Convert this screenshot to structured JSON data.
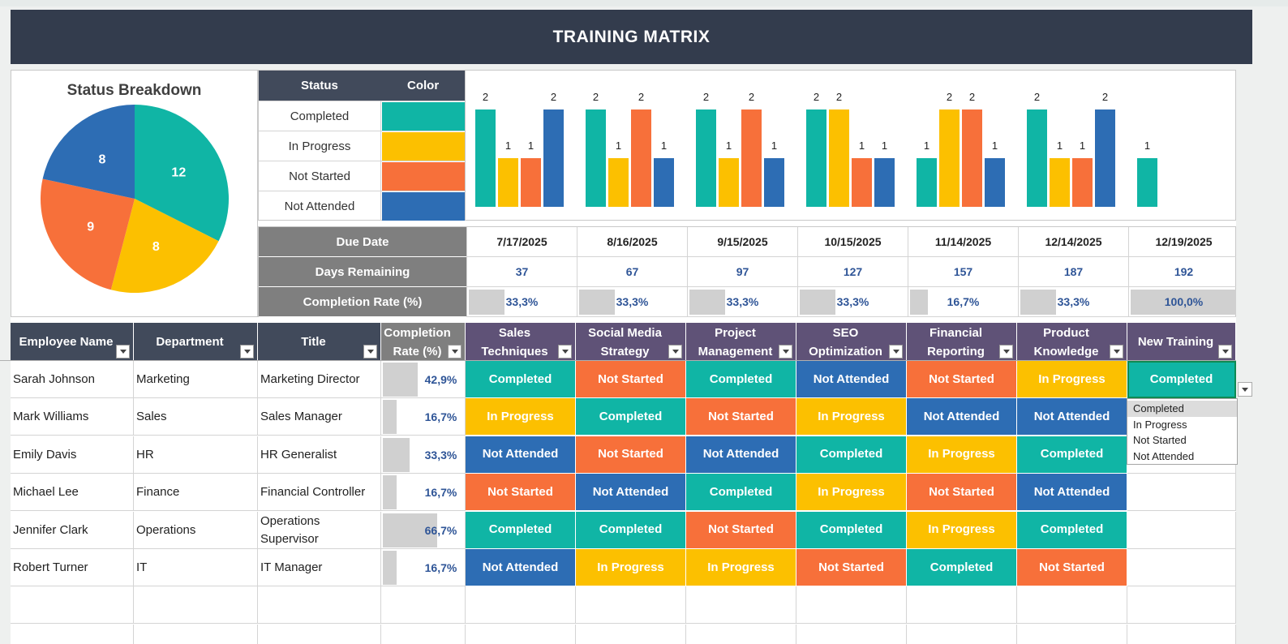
{
  "title": "TRAINING MATRIX",
  "pie": {
    "title": "Status Breakdown",
    "slices": [
      {
        "status": "Completed",
        "value": 12,
        "color": "#10b5a5"
      },
      {
        "status": "In Progress",
        "value": 8,
        "color": "#fcc000"
      },
      {
        "status": "Not Started",
        "value": 9,
        "color": "#f7703a"
      },
      {
        "status": "Not Attended",
        "value": 8,
        "color": "#2d6db4"
      }
    ]
  },
  "legend": {
    "status_header": "Status",
    "color_header": "Color",
    "items": [
      {
        "label": "Completed",
        "color": "#10b5a5"
      },
      {
        "label": "In Progress",
        "color": "#fcc000"
      },
      {
        "label": "Not Started",
        "color": "#f7703a"
      },
      {
        "label": "Not Attended",
        "color": "#2d6db4"
      }
    ]
  },
  "chart_data": {
    "type": "bar",
    "categories": [
      "Sales Techniques",
      "Social Media Strategy",
      "Project Management",
      "SEO Optimization",
      "Financial Reporting",
      "Product Knowledge",
      "New Training"
    ],
    "series": [
      {
        "name": "Completed",
        "color": "#10b5a5",
        "values": [
          2,
          2,
          2,
          2,
          1,
          2,
          1
        ]
      },
      {
        "name": "In Progress",
        "color": "#fcc000",
        "values": [
          1,
          1,
          1,
          2,
          2,
          1,
          0
        ]
      },
      {
        "name": "Not Started",
        "color": "#f7703a",
        "values": [
          1,
          2,
          2,
          1,
          2,
          1,
          0
        ]
      },
      {
        "name": "Not Attended",
        "color": "#2d6db4",
        "values": [
          2,
          1,
          1,
          1,
          1,
          2,
          0
        ]
      }
    ],
    "ylim": [
      0,
      2
    ]
  },
  "info": {
    "due_label": "Due Date",
    "days_label": "Days Remaining",
    "rate_label": "Completion Rate (%)",
    "columns": [
      {
        "due": "7/17/2025",
        "days": "37",
        "rate": "33,3%",
        "rate_value": 0.333
      },
      {
        "due": "8/16/2025",
        "days": "67",
        "rate": "33,3%",
        "rate_value": 0.333
      },
      {
        "due": "9/15/2025",
        "days": "97",
        "rate": "33,3%",
        "rate_value": 0.333
      },
      {
        "due": "10/15/2025",
        "days": "127",
        "rate": "33,3%",
        "rate_value": 0.333
      },
      {
        "due": "11/14/2025",
        "days": "157",
        "rate": "16,7%",
        "rate_value": 0.167
      },
      {
        "due": "12/14/2025",
        "days": "187",
        "rate": "33,3%",
        "rate_value": 0.333
      },
      {
        "due": "12/19/2025",
        "days": "192",
        "rate": "100,0%",
        "rate_value": 1.0
      }
    ]
  },
  "table": {
    "headers": {
      "employee": "Employee Name",
      "department": "Department",
      "title": "Title",
      "rate": "Completion Rate (%)",
      "trainings": [
        "Sales Techniques",
        "Social Media Strategy",
        "Project Management",
        "SEO Optimization",
        "Financial Reporting",
        "Product Knowledge",
        "New Training"
      ]
    },
    "rows": [
      {
        "name": "Sarah Johnson",
        "department": "Marketing",
        "title": "Marketing Director",
        "rate": "42,9%",
        "rate_value": 0.429,
        "statuses": [
          "Completed",
          "Not Started",
          "Completed",
          "Not Attended",
          "Not Started",
          "In Progress",
          "Completed"
        ]
      },
      {
        "name": "Mark Williams",
        "department": "Sales",
        "title": "Sales Manager",
        "rate": "16,7%",
        "rate_value": 0.167,
        "statuses": [
          "In Progress",
          "Completed",
          "Not Started",
          "In Progress",
          "Not Attended",
          "Not Attended",
          ""
        ]
      },
      {
        "name": "Emily Davis",
        "department": "HR",
        "title": "HR Generalist",
        "rate": "33,3%",
        "rate_value": 0.333,
        "statuses": [
          "Not Attended",
          "Not Started",
          "Not Attended",
          "Completed",
          "In Progress",
          "Completed",
          ""
        ]
      },
      {
        "name": "Michael Lee",
        "department": "Finance",
        "title": "Financial Controller",
        "rate": "16,7%",
        "rate_value": 0.167,
        "statuses": [
          "Not Started",
          "Not Attended",
          "Completed",
          "In Progress",
          "Not Started",
          "Not Attended",
          ""
        ]
      },
      {
        "name": "Jennifer Clark",
        "department": "Operations",
        "title": "Operations Supervisor",
        "rate": "66,7%",
        "rate_value": 0.667,
        "statuses": [
          "Completed",
          "Completed",
          "Not Started",
          "Completed",
          "In Progress",
          "Completed",
          ""
        ]
      },
      {
        "name": "Robert Turner",
        "department": "IT",
        "title": "IT Manager",
        "rate": "16,7%",
        "rate_value": 0.167,
        "statuses": [
          "Not Attended",
          "In Progress",
          "In Progress",
          "Not Started",
          "Completed",
          "Not Started",
          ""
        ]
      }
    ]
  },
  "dropdown": {
    "options": [
      "Completed",
      "In Progress",
      "Not Started",
      "Not Attended"
    ],
    "highlighted": "Completed"
  },
  "icons": {
    "filter": "filter-dropdown-icon",
    "cell_dropdown": "chevron-down-icon"
  }
}
